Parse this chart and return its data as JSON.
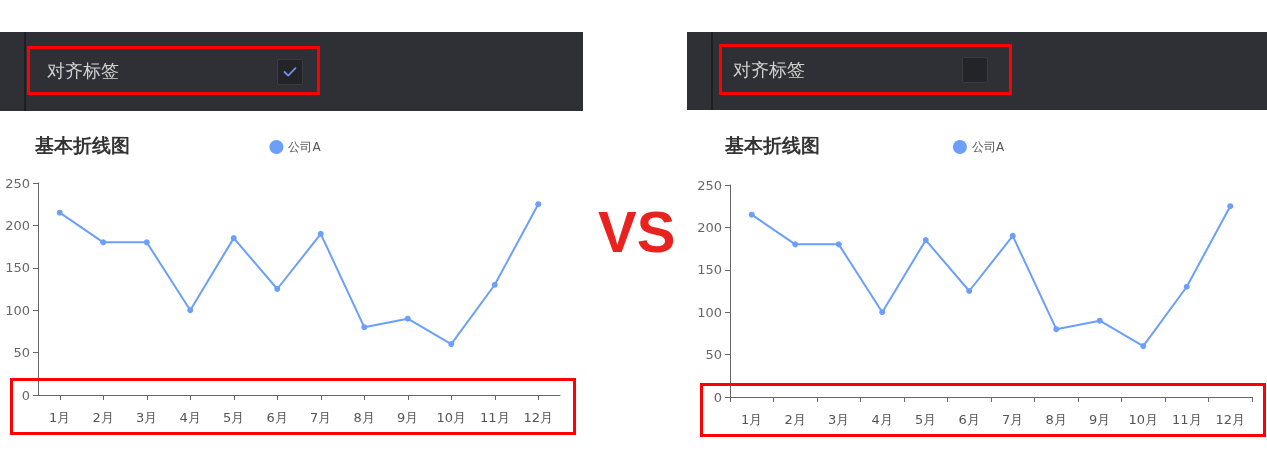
{
  "chart_data": [
    {
      "type": "line",
      "title": "基本折线图",
      "annotations": [
        "对齐标签",
        "VS"
      ],
      "categories": [
        "1月",
        "2月",
        "3月",
        "4月",
        "5月",
        "6月",
        "7月",
        "8月",
        "9月",
        "10月",
        "11月",
        "12月"
      ],
      "series": [
        {
          "name": "公司A",
          "color": "#6b9ffa",
          "values": [
            215,
            180,
            180,
            100,
            185,
            125,
            190,
            80,
            90,
            60,
            130,
            225
          ]
        }
      ],
      "ylim": [
        0,
        250
      ],
      "yticks": [
        0,
        50,
        100,
        150,
        200,
        250
      ],
      "legend": "top",
      "marker": "circle",
      "line_style": "solid"
    },
    {
      "type": "line",
      "title": "基本折线图",
      "annotations": [
        "对齐标签"
      ],
      "categories": [
        "1月",
        "2月",
        "3月",
        "4月",
        "5月",
        "6月",
        "7月",
        "8月",
        "9月",
        "10月",
        "11月",
        "12月"
      ],
      "series": [
        {
          "name": "公司A",
          "color": "#6b9ffa",
          "values": [
            215,
            180,
            180,
            100,
            185,
            125,
            190,
            80,
            90,
            60,
            130,
            225
          ]
        }
      ],
      "ylim": [
        0,
        250
      ],
      "yticks": [
        0,
        50,
        100,
        150,
        200,
        250
      ],
      "legend": "top",
      "marker": "circle",
      "line_style": "solid"
    }
  ]
}
